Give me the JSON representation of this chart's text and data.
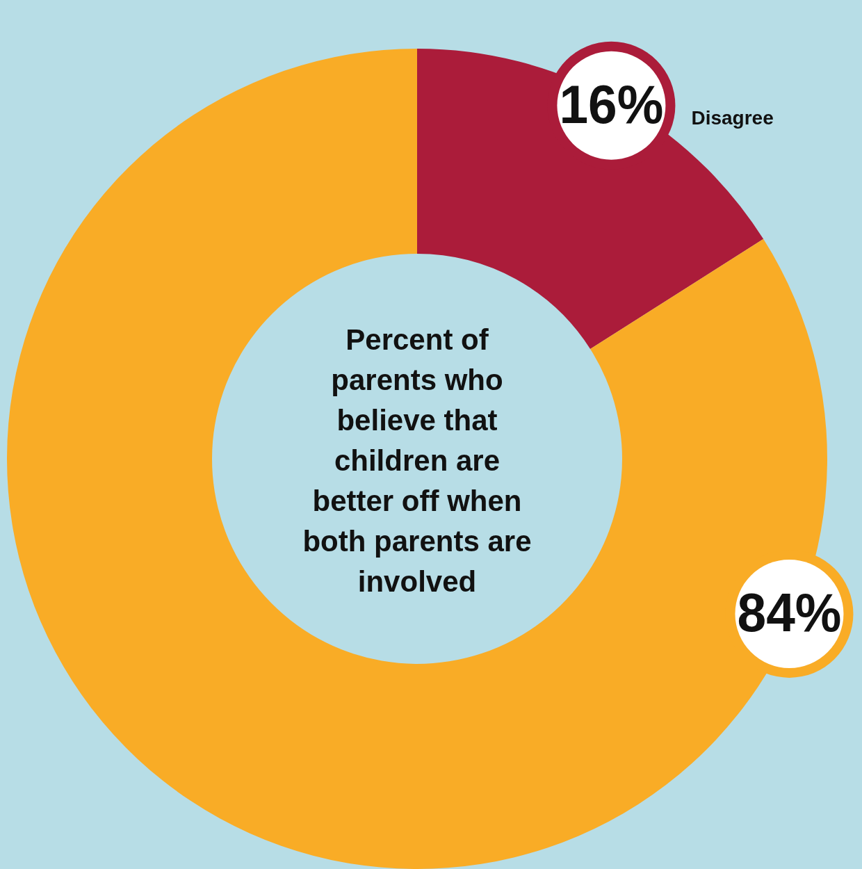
{
  "chart_data": {
    "type": "donut",
    "title": "Percent of parents who believe that children are better off when both parents are involved",
    "categories": [
      "Disagree",
      null
    ],
    "values": [
      16,
      84
    ],
    "colors": [
      "#ab1c3a",
      "#f9ac26"
    ],
    "value_labels": [
      "16%",
      "84%"
    ],
    "legend": false
  }
}
